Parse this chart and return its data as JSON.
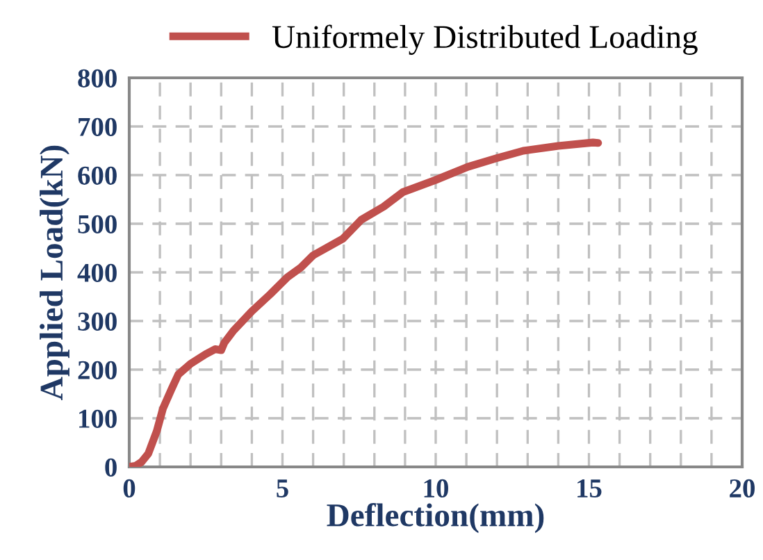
{
  "chart_data": {
    "type": "line",
    "xlabel": "Deflection(mm)",
    "ylabel": "Applied Load(kN)",
    "legend": "top",
    "grid": true,
    "line_style": "solid",
    "marker": "none",
    "xlim": [
      0,
      20
    ],
    "ylim": [
      0,
      800
    ],
    "xticks": [
      0,
      {
        "value": 1,
        "label": null
      },
      {
        "value": 2,
        "label": null
      },
      {
        "value": 3,
        "label": null
      },
      {
        "value": 4,
        "label": null
      },
      5,
      {
        "value": 6,
        "label": null
      },
      {
        "value": 7,
        "label": null
      },
      {
        "value": 8,
        "label": null
      },
      {
        "value": 9,
        "label": null
      },
      10,
      {
        "value": 11,
        "label": null
      },
      {
        "value": 12,
        "label": null
      },
      {
        "value": 13,
        "label": null
      },
      {
        "value": 14,
        "label": null
      },
      15,
      {
        "value": 16,
        "label": null
      },
      {
        "value": 17,
        "label": null
      },
      {
        "value": 18,
        "label": null
      },
      {
        "value": 19,
        "label": null
      },
      20
    ],
    "yticks": [
      0,
      100,
      200,
      300,
      400,
      500,
      600,
      700,
      800
    ],
    "series": [
      {
        "name": "Uniformely Distributed Loading",
        "color": "#c0504d",
        "x": [
          0,
          0.2,
          0.4,
          0.62,
          0.9,
          1.1,
          1.38,
          1.6,
          2.0,
          2.5,
          2.8,
          3.0,
          3.1,
          3.4,
          4,
          4.6,
          5.16,
          5.6,
          6.0,
          6.97,
          7.57,
          8.3,
          8.93,
          10,
          11.05,
          12,
          12.86,
          14,
          15.13,
          15.3
        ],
        "values": [
          0,
          2,
          10,
          27,
          74,
          120,
          160,
          190,
          212,
          232,
          242,
          240,
          255,
          280,
          320,
          355,
          390,
          410,
          435,
          469,
          508,
          535,
          565,
          590,
          617,
          635,
          650,
          660,
          667,
          666
        ]
      }
    ]
  }
}
